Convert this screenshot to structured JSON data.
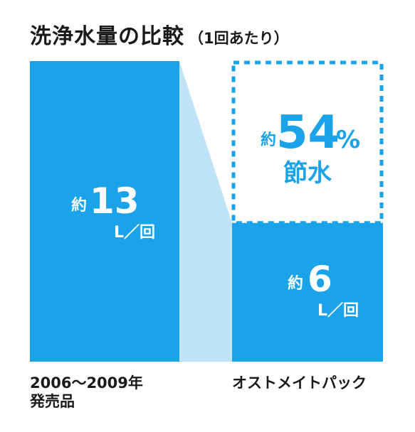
{
  "title": {
    "main": "洗浄水量の比較",
    "sub": "（1回あたり）"
  },
  "colors": {
    "bar": "#1aa3e8",
    "connector": "#bfe3f7",
    "savings_border": "#1aa3e8",
    "savings_text": "#1aa3e8",
    "bar_text": "#ffffff",
    "label_text": "#1a1a1a"
  },
  "chart_data": {
    "type": "bar",
    "title": "洗浄水量の比較",
    "subtitle": "（1回あたり）",
    "unit": "L／回",
    "categories": [
      "2006〜2009年発売品",
      "オストメイトパック"
    ],
    "values": [
      13,
      6
    ],
    "ylim": [
      0,
      13
    ],
    "grid": false,
    "legend": "none",
    "bar_labels": [
      {
        "prefix": "約",
        "value": "13",
        "unit": "L／回"
      },
      {
        "prefix": "約",
        "value": "6",
        "unit": "L／回"
      }
    ],
    "category_lines": [
      [
        "2006〜2009年",
        "発売品"
      ],
      [
        "オストメイトパック"
      ]
    ],
    "annotation": {
      "prefix": "約",
      "value": "54",
      "percent": "%",
      "text": "節水",
      "savings_percent": 54
    }
  }
}
